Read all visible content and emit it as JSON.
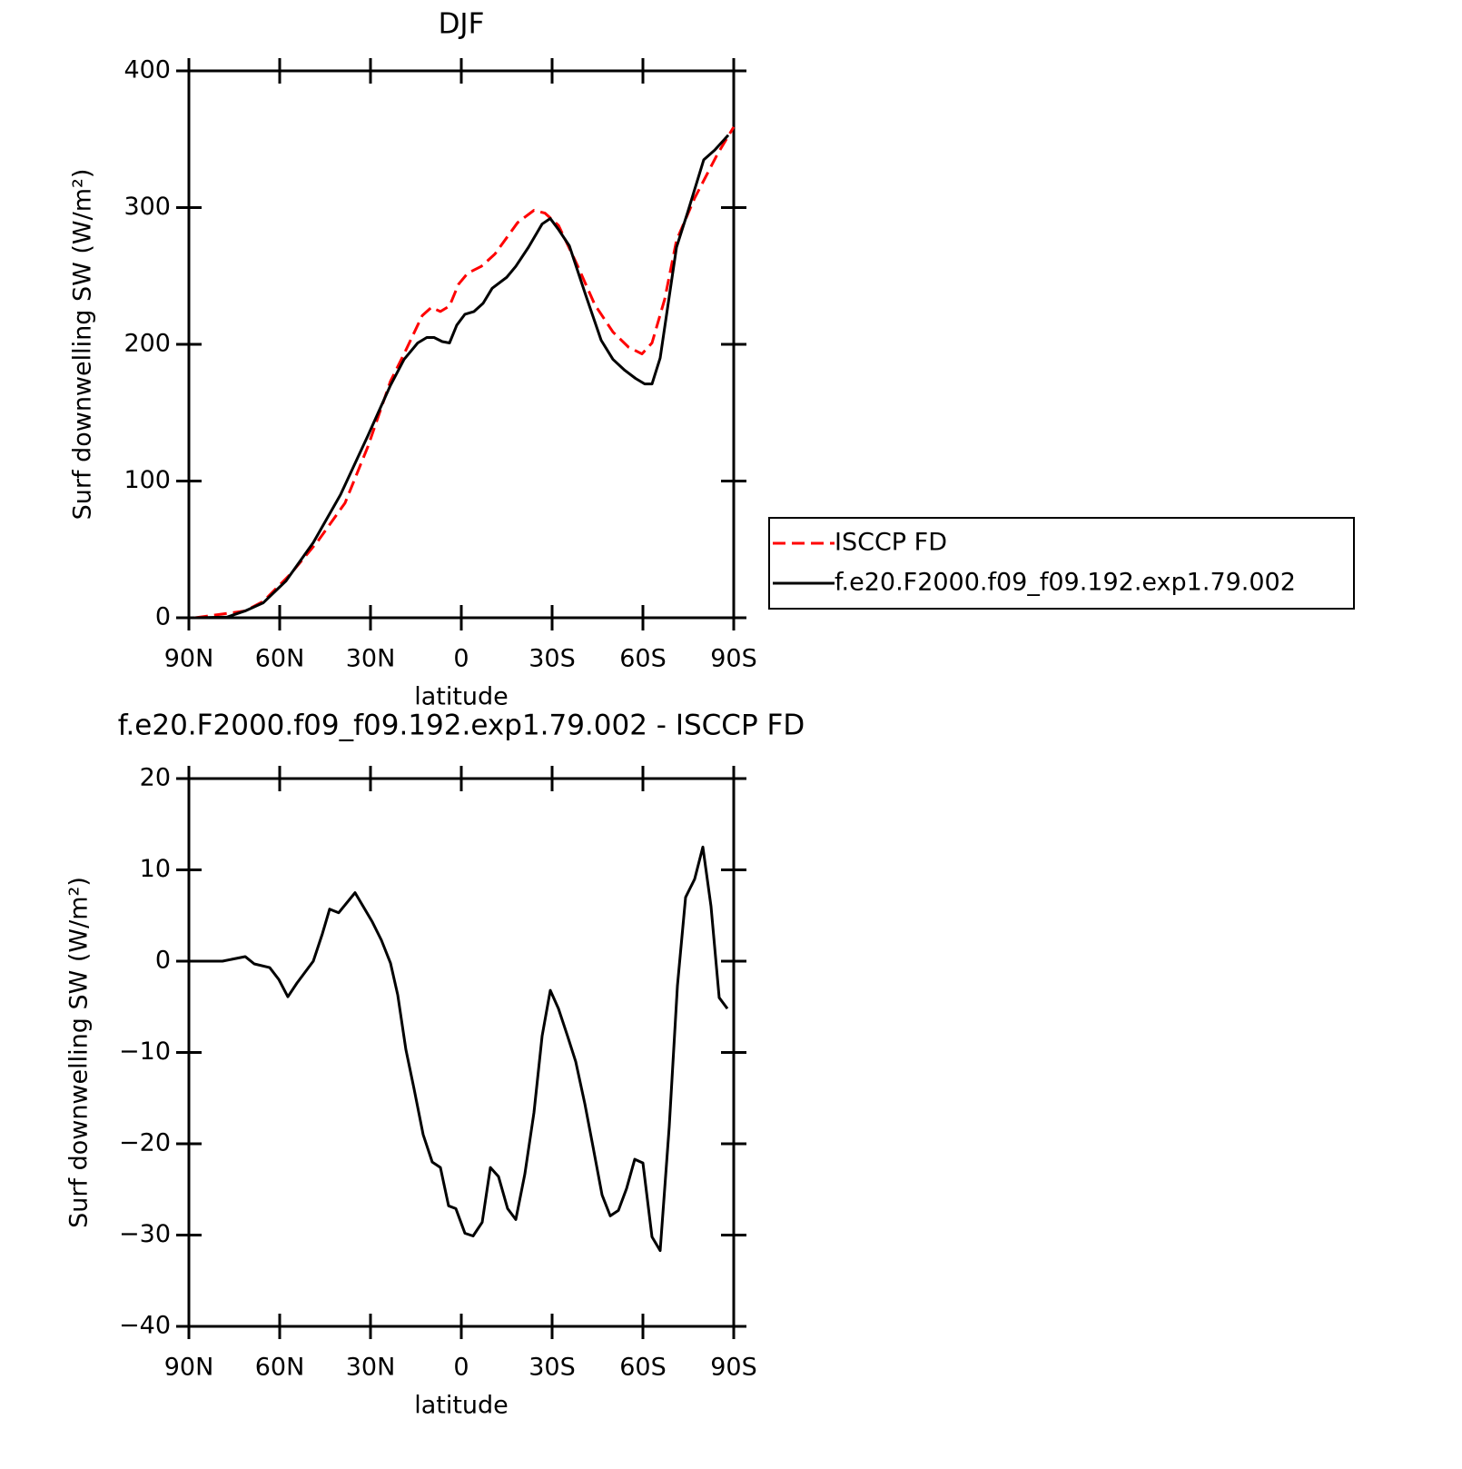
{
  "chart_data": [
    {
      "type": "line",
      "title": "DJF",
      "x_label": "latitude",
      "y_label": "Surf downwelling SW (W/m²)",
      "xlim": [
        90,
        -90
      ],
      "xticks": [
        {
          "value": 90,
          "label": "90N"
        },
        {
          "value": 60,
          "label": "60N"
        },
        {
          "value": 30,
          "label": "30N"
        },
        0,
        {
          "value": -30,
          "label": "30S"
        },
        {
          "value": -60,
          "label": "60S"
        },
        {
          "value": -90,
          "label": "90S"
        }
      ],
      "ylim": [
        0,
        400
      ],
      "yticks": [
        0,
        100,
        200,
        300,
        400
      ],
      "legend": "right",
      "series": [
        {
          "name": "ISCCP FD",
          "color": "#ff0000",
          "dashed": true,
          "x": [
            87.9,
            71.4,
            65.4,
            56.4,
            47.4,
            38.4,
            30.9,
            23.4,
            18.9,
            12.9,
            9.9,
            6.9,
            3.9,
            0.9,
            -2.1,
            -6.6,
            -11.1,
            -18.6,
            -24,
            -27.6,
            -32.1,
            -38.1,
            -44.1,
            -50.1,
            -55.2,
            -59.7,
            -63,
            -67.2,
            -71.1,
            -77.1,
            -84.6,
            -90
          ],
          "values": [
            0,
            5,
            12,
            32,
            56,
            84,
            125,
            173,
            193,
            221,
            227,
            224,
            228,
            244,
            252,
            257,
            266,
            289,
            298,
            296,
            287,
            259,
            229,
            209,
            198,
            193,
            201,
            233,
            276,
            307,
            339,
            359
          ]
        },
        {
          "name": "f.e20.F2000.f09_f09.192.exp1.79.002",
          "color": "#000000",
          "dashed": false,
          "x": [
            87.9,
            77.4,
            71.4,
            65.4,
            57.9,
            48.9,
            39.9,
            30.9,
            23.4,
            18.9,
            14.4,
            11.4,
            9,
            6.3,
            3.9,
            1.5,
            -1.2,
            -4.2,
            -7.2,
            -10.2,
            -15,
            -18,
            -22.2,
            -26.7,
            -29.4,
            -32.1,
            -35.7,
            -41.1,
            -46.2,
            -50.1,
            -54,
            -57.6,
            -60.6,
            -63,
            -65.7,
            -71.1,
            -74.7,
            -80.1,
            -83.7,
            -88.2
          ],
          "values": [
            0,
            0.5,
            5,
            11,
            27,
            55,
            90,
            133,
            170,
            189,
            201,
            205,
            205,
            202,
            201,
            214,
            222,
            224,
            230,
            241,
            249,
            257,
            271,
            288,
            292,
            284,
            272,
            236,
            203,
            189,
            181,
            175,
            171,
            171,
            190,
            271,
            296,
            335,
            342,
            353
          ]
        }
      ]
    },
    {
      "type": "line",
      "title": "f.e20.F2000.f09_f09.192.exp1.79.002 - ISCCP FD",
      "x_label": "latitude",
      "y_label": "Surf downwelling SW (W/m²)",
      "xlim": [
        90,
        -90
      ],
      "xticks": [
        {
          "value": 90,
          "label": "90N"
        },
        {
          "value": 60,
          "label": "60N"
        },
        {
          "value": 30,
          "label": "30N"
        },
        0,
        {
          "value": -30,
          "label": "30S"
        },
        {
          "value": -60,
          "label": "60S"
        },
        {
          "value": -90,
          "label": "90S"
        }
      ],
      "ylim": [
        -40,
        20
      ],
      "yticks": [
        {
          "value": -40,
          "label": "−40"
        },
        {
          "value": -30,
          "label": "−30"
        },
        {
          "value": -20,
          "label": "−20"
        },
        {
          "value": -10,
          "label": "−10"
        },
        0,
        10,
        20
      ],
      "series": [
        {
          "color": "#000000",
          "dashed": false,
          "x": [
            87.9,
            78.9,
            71.4,
            68.4,
            63.3,
            60.3,
            57.3,
            54.3,
            48.9,
            45.9,
            43.5,
            40.5,
            35.1,
            29.4,
            26.4,
            23.4,
            21,
            18.3,
            15.6,
            12.6,
            9.6,
            6.9,
            4.2,
            1.8,
            -1.2,
            -3.9,
            -6.9,
            -9.6,
            -12.3,
            -15.3,
            -18,
            -21,
            -24,
            -26.7,
            -29.4,
            -32.1,
            -35.1,
            -37.8,
            -40.8,
            -43.5,
            -46.5,
            -49.2,
            -51.9,
            -54.6,
            -57.3,
            -60,
            -63,
            -65.7,
            -68.7,
            -71.4,
            -74.1,
            -77.1,
            -79.8,
            -82.5,
            -85.2,
            -87.9
          ],
          "values": [
            0,
            0,
            0.5,
            -0.3,
            -0.7,
            -2,
            -3.9,
            -2.4,
            0,
            3,
            5.7,
            5.3,
            7.5,
            4.3,
            2.3,
            -0.2,
            -3.7,
            -9.7,
            -14,
            -19,
            -22,
            -22.6,
            -26.8,
            -27.1,
            -29.8,
            -30.1,
            -28.6,
            -22.6,
            -23.6,
            -27.1,
            -28.3,
            -23.3,
            -16.6,
            -8.2,
            -3.2,
            -5.2,
            -8.2,
            -11,
            -15.6,
            -20.3,
            -25.6,
            -27.9,
            -27.3,
            -24.9,
            -21.7,
            -22.1,
            -30.2,
            -31.7,
            -18.1,
            -2.7,
            7,
            9,
            12.5,
            6,
            -4,
            -5.2
          ]
        }
      ]
    }
  ]
}
